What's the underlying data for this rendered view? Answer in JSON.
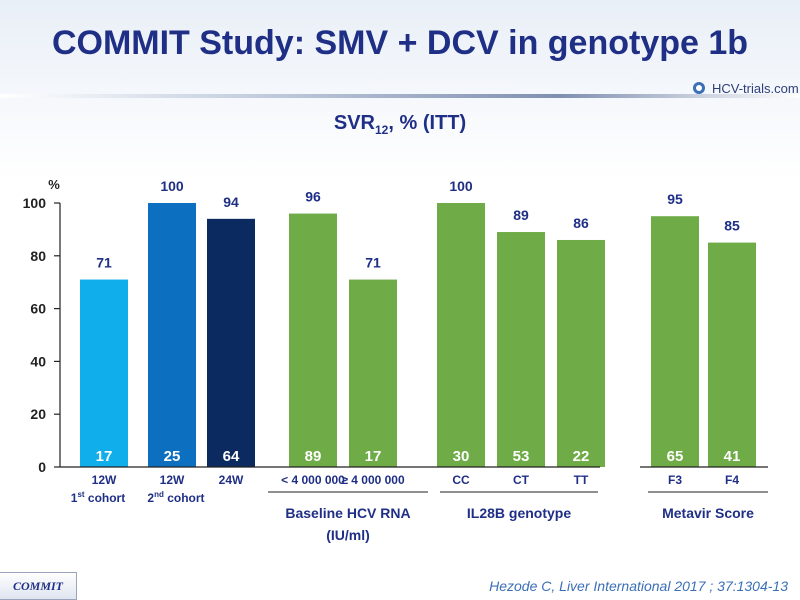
{
  "title": "COMMIT Study: SMV + DCV in genotype 1b",
  "logo_text": "HCV-trials.com",
  "subtitle": {
    "prefix": "SVR",
    "sub": "12",
    "suffix": ", % (ITT)"
  },
  "footer_tag": "COMMIT",
  "citation": "Hezode C, Liver International 2017 ; 37:1304-13",
  "chart_data": {
    "type": "bar",
    "ylabel": "%",
    "ylim": [
      0,
      100
    ],
    "yticks": [
      0,
      20,
      40,
      60,
      80,
      100
    ],
    "bars": [
      {
        "category": "12W",
        "sublabel": "1st cohort",
        "value": 71,
        "n": 17,
        "color": "#10aeea",
        "group": 0
      },
      {
        "category": "12W",
        "sublabel": "2nd cohort",
        "value": 100,
        "n": 25,
        "color": "#0c6fc0",
        "group": 0
      },
      {
        "category": "24W",
        "sublabel": "",
        "value": 94,
        "n": 64,
        "color": "#0b2a5f",
        "group": 0
      },
      {
        "category": "< 4 000 000",
        "value": 96,
        "n": 89,
        "color": "#6fab47",
        "group": 1
      },
      {
        "category": "≥ 4 000 000",
        "value": 71,
        "n": 17,
        "color": "#6fab47",
        "group": 1
      },
      {
        "category": "CC",
        "value": 100,
        "n": 30,
        "color": "#6fab47",
        "group": 2
      },
      {
        "category": "CT",
        "value": 89,
        "n": 53,
        "color": "#6fab47",
        "group": 2
      },
      {
        "category": "TT",
        "value": 86,
        "n": 22,
        "color": "#6fab47",
        "group": 2
      },
      {
        "category": "F3",
        "value": 95,
        "n": 65,
        "color": "#6fab47",
        "group": 3
      },
      {
        "category": "F4",
        "value": 85,
        "n": 41,
        "color": "#6fab47",
        "group": 3
      }
    ],
    "groups": [
      {
        "label": ""
      },
      {
        "label": "Baseline HCV RNA",
        "label2": "(IU/ml)"
      },
      {
        "label": "IL28B genotype"
      },
      {
        "label": "Metavir Score"
      }
    ]
  }
}
